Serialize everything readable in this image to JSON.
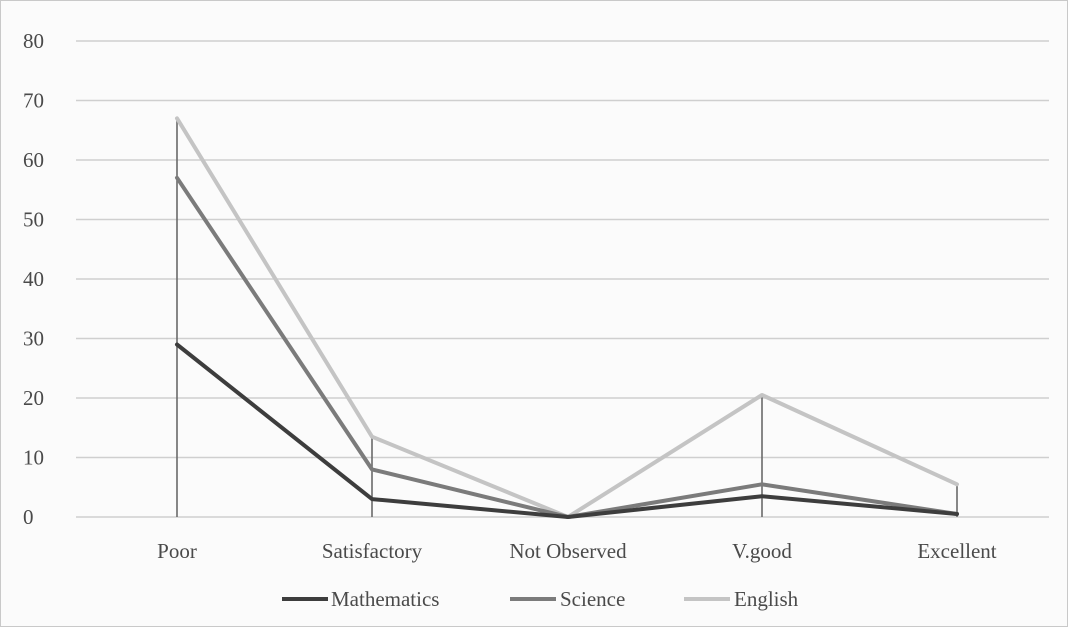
{
  "chart_data": {
    "type": "line",
    "title": "",
    "xlabel": "",
    "ylabel": "",
    "categories": [
      "Poor",
      "Satisfactory",
      "Not Observed",
      "V.good",
      "Excellent"
    ],
    "ylim": [
      0,
      80
    ],
    "yticks": [
      0,
      10,
      20,
      30,
      40,
      50,
      60,
      70,
      80
    ],
    "grid": true,
    "legend_position": "bottom",
    "series": [
      {
        "name": "Mathematics",
        "values": [
          29,
          3,
          0,
          3.5,
          0.5
        ],
        "color": "#3d3d3d"
      },
      {
        "name": "Science",
        "values": [
          57,
          8,
          0,
          5.5,
          0.5
        ],
        "color": "#7b7b7b"
      },
      {
        "name": "English",
        "values": [
          67,
          13.5,
          0,
          20.5,
          5.5
        ],
        "color": "#c4c4c4"
      }
    ],
    "drop_lines": true,
    "drop_line_color": "#6a6a6a"
  }
}
